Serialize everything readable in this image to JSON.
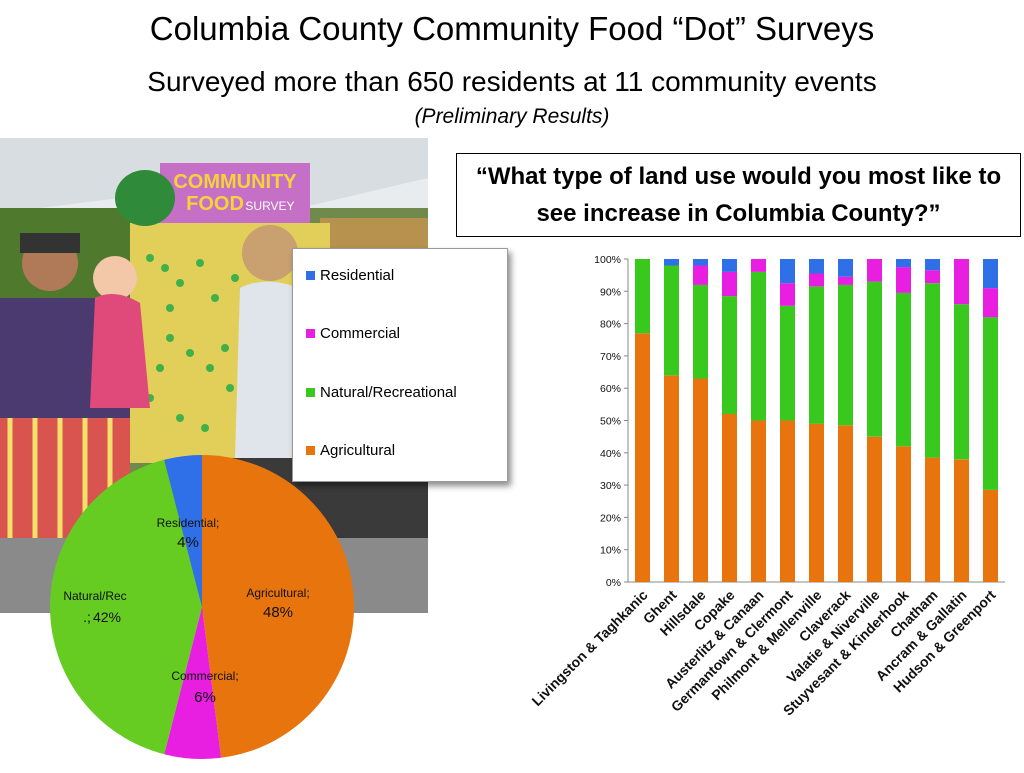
{
  "header": {
    "title": "Columbia County Community Food “Dot” Surveys",
    "subtitle": "Surveyed more than 650 residents at 11 community events",
    "note": "(Preliminary Results)"
  },
  "question": "“What type of land use would you most like to see increase in Columbia County?”",
  "photo": {
    "icon": "community-food-survey-photo",
    "banner_line1": "COMMUNITY",
    "banner_line2": "FOOD",
    "banner_line3": "SURVEY"
  },
  "legend": [
    {
      "label": "Residential",
      "color": "#2f6fe8"
    },
    {
      "label": "Commercial",
      "color": "#e81ee0"
    },
    {
      "label": "Natural/Recreational",
      "color": "#38c81e"
    },
    {
      "label": "Agricultural",
      "color": "#e8740e"
    }
  ],
  "chart_data": [
    {
      "type": "pie",
      "slices": [
        {
          "label": "Agricultural;",
          "value": 48,
          "display": "48%",
          "color": "#e8740e"
        },
        {
          "label": "Commercial;",
          "value": 6,
          "display": "6%",
          "color": "#e81ee0"
        },
        {
          "label": "Natural/Rec\n.;",
          "value": 42,
          "display": "42%",
          "color": "#66cc22"
        },
        {
          "label": "Residential;",
          "value": 4,
          "display": "4%",
          "color": "#2f6fe8"
        }
      ]
    },
    {
      "type": "bar",
      "stacked": true,
      "ylim": [
        0,
        100
      ],
      "yticks": [
        "0%",
        "10%",
        "20%",
        "30%",
        "40%",
        "50%",
        "60%",
        "70%",
        "80%",
        "90%",
        "100%"
      ],
      "grid": false,
      "categories": [
        "Livingston & Taghkanic",
        "Ghent",
        "Hillsdale",
        "Copake",
        "Austerlitz & Canaan",
        "Germantown & Clermont",
        "Philmont & Mellenville",
        "Claverack",
        "Valatie & Niverville",
        "Stuyvesant & Kinderhook",
        "Chatham",
        "Ancram & Gallatin",
        "Hudson & Greenport"
      ],
      "series": [
        {
          "name": "Agricultural",
          "color": "#e8740e",
          "values": [
            77,
            64,
            63,
            52,
            50,
            50,
            49,
            48.5,
            45,
            42,
            38.5,
            38,
            28.5
          ]
        },
        {
          "name": "Natural/Recreational",
          "color": "#38c81e",
          "values": [
            23,
            34,
            29,
            36.5,
            46,
            35.5,
            42.5,
            43.5,
            48,
            47.5,
            54,
            48,
            53.5
          ]
        },
        {
          "name": "Commercial",
          "color": "#e81ee0",
          "values": [
            0,
            0,
            6,
            7.5,
            4,
            7,
            4,
            2.5,
            7,
            8,
            4,
            14,
            9
          ]
        },
        {
          "name": "Residential",
          "color": "#2f6fe8",
          "values": [
            0,
            2,
            2,
            4,
            0,
            7.5,
            4.5,
            5.5,
            0,
            2.5,
            3.5,
            0,
            9
          ]
        }
      ]
    }
  ]
}
